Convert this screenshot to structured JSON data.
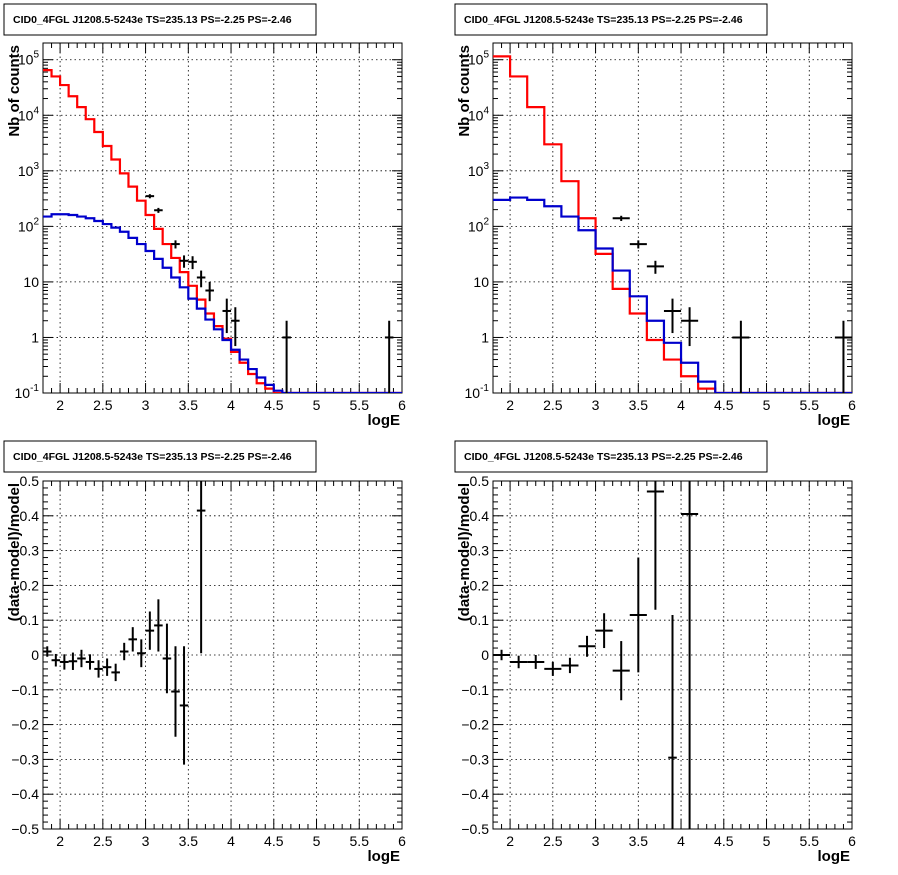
{
  "chart_data": [
    {
      "type": "histogram",
      "title": "CID0_4FGL J1208.5-5243e TS=235.13 PS=-2.25 PS=-2.46",
      "xlabel": "logE",
      "ylabel": "Nb of counts",
      "xlim": [
        1.8,
        6.0
      ],
      "ylim": [
        0.1,
        200000
      ],
      "yscale": "log",
      "grid": true,
      "x_ticks": [
        "2",
        "2.5",
        "3",
        "3.5",
        "4",
        "4.5",
        "5",
        "5.5",
        "6"
      ],
      "y_ticks": [
        "10^-1",
        "1",
        "10",
        "10^2",
        "10^3",
        "10^4",
        "10^5"
      ],
      "series": [
        {
          "name": "",
          "color": "#ff0000",
          "style": "step",
          "bin_edges": [
            1.8,
            1.9,
            2.0,
            2.1,
            2.2,
            2.3,
            2.4,
            2.5,
            2.6,
            2.7,
            2.8,
            2.9,
            3.0,
            3.1,
            3.2,
            3.3,
            3.4,
            3.5,
            3.6,
            3.7,
            3.8,
            3.9,
            4.0,
            4.1,
            4.2,
            4.3,
            4.4,
            4.5,
            4.6,
            4.7,
            4.8,
            4.9,
            5.0,
            5.1,
            5.2,
            5.3,
            5.4,
            5.5,
            5.6,
            5.7,
            5.8,
            5.9,
            6.0
          ],
          "values": [
            65000,
            50000,
            35000,
            22000,
            14000,
            8500,
            5000,
            2800,
            1600,
            900,
            520,
            290,
            160,
            90,
            48,
            27,
            15,
            8.5,
            4.8,
            2.7,
            1.6,
            0.95,
            0.55,
            0.35,
            0.22,
            0.15,
            0.12,
            0.1,
            0.1,
            0.1,
            0.1,
            0.1,
            0.1,
            0.1,
            0.1,
            0.1,
            0.1,
            0.1,
            0.1,
            0.1,
            0.1,
            0.1
          ]
        },
        {
          "name": "",
          "color": "#0000cc",
          "style": "step",
          "bin_edges": [
            1.8,
            1.9,
            2.0,
            2.1,
            2.2,
            2.3,
            2.4,
            2.5,
            2.6,
            2.7,
            2.8,
            2.9,
            3.0,
            3.1,
            3.2,
            3.3,
            3.4,
            3.5,
            3.6,
            3.7,
            3.8,
            3.9,
            4.0,
            4.1,
            4.2,
            4.3,
            4.4,
            4.5,
            4.6,
            4.7,
            4.8,
            4.9,
            5.0,
            5.1,
            5.2,
            5.3,
            5.4,
            5.5,
            5.6,
            5.7,
            5.8,
            5.9,
            6.0
          ],
          "values": [
            150,
            165,
            165,
            160,
            150,
            140,
            125,
            110,
            95,
            80,
            62,
            48,
            36,
            26,
            18,
            12,
            8,
            5,
            3.3,
            2.1,
            1.4,
            0.9,
            0.6,
            0.4,
            0.27,
            0.19,
            0.14,
            0.11,
            0.1,
            0.1,
            0.1,
            0.1,
            0.1,
            0.1,
            0.1,
            0.1,
            0.1,
            0.1,
            0.1,
            0.1,
            0.1,
            0.1
          ]
        },
        {
          "name": "",
          "color": "#000000",
          "style": "errorbar",
          "points": [
            {
              "x": 3.05,
              "y": 350,
              "xerr": 0.05,
              "ylo": 320,
              "yhi": 380
            },
            {
              "x": 3.15,
              "y": 195,
              "xerr": 0.05,
              "ylo": 175,
              "yhi": 215
            },
            {
              "x": 3.35,
              "y": 48,
              "xerr": 0.05,
              "ylo": 40,
              "yhi": 56
            },
            {
              "x": 3.45,
              "y": 24,
              "xerr": 0.05,
              "ylo": 18,
              "yhi": 30
            },
            {
              "x": 3.55,
              "y": 23,
              "xerr": 0.05,
              "ylo": 17,
              "yhi": 29
            },
            {
              "x": 3.65,
              "y": 12,
              "xerr": 0.05,
              "ylo": 8,
              "yhi": 16
            },
            {
              "x": 3.75,
              "y": 7,
              "xerr": 0.05,
              "ylo": 4.5,
              "yhi": 10
            },
            {
              "x": 3.95,
              "y": 3,
              "xerr": 0.05,
              "ylo": 1.2,
              "yhi": 5
            },
            {
              "x": 4.05,
              "y": 2,
              "xerr": 0.05,
              "ylo": 0.7,
              "yhi": 3.5
            },
            {
              "x": 4.65,
              "y": 1,
              "xerr": 0.05,
              "ylo": 0.1,
              "yhi": 2
            },
            {
              "x": 5.85,
              "y": 1,
              "xerr": 0.05,
              "ylo": 0.1,
              "yhi": 2
            }
          ]
        }
      ]
    },
    {
      "type": "histogram",
      "title": "CID0_4FGL J1208.5-5243e TS=235.13 PS=-2.25 PS=-2.46",
      "xlabel": "logE",
      "ylabel": "Nb of counts",
      "xlim": [
        1.8,
        6.0
      ],
      "ylim": [
        0.1,
        200000
      ],
      "yscale": "log",
      "grid": true,
      "x_ticks": [
        "2",
        "2.5",
        "3",
        "3.5",
        "4",
        "4.5",
        "5",
        "5.5",
        "6"
      ],
      "y_ticks": [
        "10^-1",
        "1",
        "10",
        "10^2",
        "10^3",
        "10^4",
        "10^5"
      ],
      "series": [
        {
          "name": "",
          "color": "#ff0000",
          "style": "step",
          "bin_edges": [
            1.8,
            2.0,
            2.2,
            2.4,
            2.6,
            2.8,
            3.0,
            3.2,
            3.4,
            3.6,
            3.8,
            4.0,
            4.2,
            4.4,
            4.6,
            4.8,
            5.0,
            5.2,
            5.4,
            5.6,
            5.8,
            6.0
          ],
          "values": [
            115000,
            50000,
            14000,
            3000,
            650,
            140,
            32,
            7.5,
            2.7,
            0.9,
            0.4,
            0.2,
            0.12,
            0.1,
            0.1,
            0.1,
            0.1,
            0.1,
            0.1,
            0.1,
            0.1
          ],
          "note": ""
        },
        {
          "name": "",
          "color": "#0000cc",
          "style": "step",
          "bin_edges": [
            1.8,
            2.0,
            2.2,
            2.4,
            2.6,
            2.8,
            3.0,
            3.2,
            3.4,
            3.6,
            3.8,
            4.0,
            4.2,
            4.4,
            4.6,
            4.8,
            5.0,
            5.2,
            5.4,
            5.6,
            5.8,
            6.0
          ],
          "values": [
            300,
            330,
            300,
            230,
            150,
            85,
            40,
            16,
            5.5,
            2,
            0.8,
            0.35,
            0.16,
            0.1,
            0.1,
            0.1,
            0.1,
            0.1,
            0.1,
            0.1,
            0.1
          ]
        },
        {
          "name": "",
          "color": "#000000",
          "style": "errorbar",
          "points": [
            {
              "x": 3.3,
              "y": 140,
              "xerr": 0.1,
              "ylo": 125,
              "yhi": 155
            },
            {
              "x": 3.5,
              "y": 48,
              "xerr": 0.1,
              "ylo": 40,
              "yhi": 56
            },
            {
              "x": 3.7,
              "y": 19,
              "xerr": 0.1,
              "ylo": 14,
              "yhi": 24
            },
            {
              "x": 3.9,
              "y": 3,
              "xerr": 0.1,
              "ylo": 1.2,
              "yhi": 5
            },
            {
              "x": 4.1,
              "y": 2,
              "xerr": 0.1,
              "ylo": 0.7,
              "yhi": 3.5
            },
            {
              "x": 4.7,
              "y": 1,
              "xerr": 0.1,
              "ylo": 0.1,
              "yhi": 2
            },
            {
              "x": 5.9,
              "y": 1,
              "xerr": 0.1,
              "ylo": 0.1,
              "yhi": 2
            }
          ]
        }
      ]
    },
    {
      "type": "scatter",
      "title": "CID0_4FGL J1208.5-5243e TS=235.13 PS=-2.25 PS=-2.46",
      "xlabel": "logE",
      "ylabel": "(data-model)/model",
      "xlim": [
        1.8,
        6.0
      ],
      "ylim": [
        -0.5,
        0.5
      ],
      "grid": true,
      "x_ticks": [
        "2",
        "2.5",
        "3",
        "3.5",
        "4",
        "4.5",
        "5",
        "5.5",
        "6"
      ],
      "y_ticks": [
        "−0.5",
        "−0.4",
        "−0.3",
        "−0.2",
        "−0.1",
        "0",
        "0.1",
        "0.2",
        "0.3",
        "0.4",
        "0.5"
      ],
      "series": [
        {
          "name": "",
          "color": "#000000",
          "style": "errorbar",
          "points": [
            {
              "x": 1.85,
              "y": 0.01,
              "xerr": 0.05,
              "yerr": 0.015
            },
            {
              "x": 1.95,
              "y": -0.015,
              "xerr": 0.05,
              "yerr": 0.018
            },
            {
              "x": 2.05,
              "y": -0.02,
              "xerr": 0.05,
              "yerr": 0.022
            },
            {
              "x": 2.15,
              "y": -0.018,
              "xerr": 0.05,
              "yerr": 0.025
            },
            {
              "x": 2.25,
              "y": -0.01,
              "xerr": 0.05,
              "yerr": 0.025
            },
            {
              "x": 2.35,
              "y": -0.02,
              "xerr": 0.05,
              "yerr": 0.022
            },
            {
              "x": 2.45,
              "y": -0.04,
              "xerr": 0.05,
              "yerr": 0.025
            },
            {
              "x": 2.55,
              "y": -0.035,
              "xerr": 0.05,
              "yerr": 0.025
            },
            {
              "x": 2.65,
              "y": -0.05,
              "xerr": 0.05,
              "yerr": 0.025
            },
            {
              "x": 2.75,
              "y": 0.01,
              "xerr": 0.05,
              "yerr": 0.025
            },
            {
              "x": 2.85,
              "y": 0.045,
              "xerr": 0.05,
              "yerr": 0.035
            },
            {
              "x": 2.95,
              "y": 0.005,
              "xerr": 0.05,
              "yerr": 0.04
            },
            {
              "x": 3.05,
              "y": 0.07,
              "xerr": 0.05,
              "yerr": 0.055
            },
            {
              "x": 3.15,
              "y": 0.085,
              "xerr": 0.05,
              "yerr": 0.075
            },
            {
              "x": 3.25,
              "y": -0.01,
              "xerr": 0.05,
              "yerr": 0.1
            },
            {
              "x": 3.35,
              "y": -0.105,
              "xerr": 0.05,
              "yerr": 0.13
            },
            {
              "x": 3.45,
              "y": -0.145,
              "xerr": 0.05,
              "yerr": 0.17
            },
            {
              "x": 3.65,
              "y": 0.415,
              "xerr": 0.05,
              "yerr": 0.41
            }
          ]
        }
      ]
    },
    {
      "type": "scatter",
      "title": "CID0_4FGL J1208.5-5243e TS=235.13 PS=-2.25 PS=-2.46",
      "xlabel": "logE",
      "ylabel": "(data-model)/model",
      "xlim": [
        1.8,
        6.0
      ],
      "ylim": [
        -0.5,
        0.5
      ],
      "grid": true,
      "x_ticks": [
        "2",
        "2.5",
        "3",
        "3.5",
        "4",
        "4.5",
        "5",
        "5.5",
        "6"
      ],
      "y_ticks": [
        "−0.5",
        "−0.4",
        "−0.3",
        "−0.2",
        "−0.1",
        "0",
        "0.1",
        "0.2",
        "0.3",
        "0.4",
        "0.5"
      ],
      "series": [
        {
          "name": "",
          "color": "#000000",
          "style": "errorbar",
          "points": [
            {
              "x": 1.9,
              "y": 0.0,
              "xerr": 0.1,
              "yerr": 0.015
            },
            {
              "x": 2.1,
              "y": -0.02,
              "xerr": 0.1,
              "yerr": 0.018
            },
            {
              "x": 2.3,
              "y": -0.02,
              "xerr": 0.1,
              "yerr": 0.02
            },
            {
              "x": 2.5,
              "y": -0.04,
              "xerr": 0.1,
              "yerr": 0.02
            },
            {
              "x": 2.7,
              "y": -0.03,
              "xerr": 0.1,
              "yerr": 0.022
            },
            {
              "x": 2.9,
              "y": 0.025,
              "xerr": 0.1,
              "yerr": 0.03
            },
            {
              "x": 3.1,
              "y": 0.07,
              "xerr": 0.1,
              "yerr": 0.05
            },
            {
              "x": 3.3,
              "y": -0.045,
              "xerr": 0.1,
              "yerr": 0.085
            },
            {
              "x": 3.5,
              "y": 0.115,
              "xerr": 0.1,
              "yerr": 0.165
            },
            {
              "x": 3.7,
              "y": 0.47,
              "xerr": 0.1,
              "yerr": 0.34
            },
            {
              "x": 3.9,
              "y": -0.295,
              "xerr": 0.05,
              "yerr": 0.41
            },
            {
              "x": 4.1,
              "y": 0.405,
              "xerr": 0.1,
              "yerr": 0.95
            }
          ]
        }
      ]
    }
  ]
}
